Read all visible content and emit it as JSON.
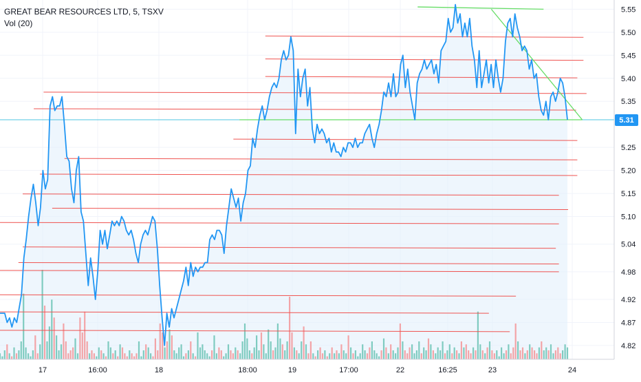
{
  "legend": {
    "symbol": "GREAT BEAR RESOURCES LTD, 5, TSXV",
    "volume": "Vol (20)"
  },
  "colors": {
    "price_line": "#2196f3",
    "price_fill": "#e3f0fb",
    "support_resistance": "#ef5350",
    "triangle": "#66dd66",
    "last_price_line": "#4dc4e0",
    "last_price_badge": "#2196f3",
    "vol_up": "#7fcbc0",
    "vol_down": "#f3a4a7",
    "axis": "#d0d3db"
  },
  "chart_data": {
    "type": "line",
    "symbol": "GREAT BEAR RESOURCES LTD, 5, TSXV",
    "x_ticks": [
      "17",
      "16:00",
      "18",
      "18:00",
      "19",
      "17:00",
      "22",
      "16:25",
      "23",
      "24"
    ],
    "y_ticks": [
      5.55,
      5.5,
      5.45,
      5.4,
      5.35,
      5.25,
      5.2,
      5.15,
      5.1,
      5.04,
      4.98,
      4.92,
      4.87,
      4.82
    ],
    "ylim": [
      4.79,
      5.57
    ],
    "last_price": 5.31,
    "last_price_label": "5.31",
    "grid": true,
    "price": [
      4.89,
      4.89,
      4.89,
      4.87,
      4.88,
      4.86,
      4.88,
      4.87,
      4.9,
      4.93,
      5.01,
      5.05,
      5.1,
      5.14,
      5.17,
      5.13,
      5.08,
      5.12,
      5.2,
      5.16,
      5.18,
      5.34,
      5.36,
      5.33,
      5.34,
      5.34,
      5.36,
      5.3,
      5.23,
      5.22,
      5.16,
      5.13,
      5.2,
      5.23,
      5.11,
      5.09,
      5.02,
      4.95,
      5.01,
      4.97,
      4.92,
      4.98,
      5.07,
      5.04,
      5.07,
      5.03,
      5.06,
      5.09,
      5.08,
      5.09,
      5.08,
      5.1,
      5.09,
      5.07,
      5.06,
      5.07,
      5.05,
      5.02,
      5.0,
      5.04,
      5.06,
      5.07,
      5.06,
      5.08,
      5.1,
      5.09,
      5.03,
      4.95,
      4.88,
      4.82,
      4.89,
      4.86,
      4.9,
      4.88,
      4.9,
      4.92,
      4.94,
      4.96,
      4.99,
      4.95,
      5.0,
      4.97,
      4.99,
      4.98,
      4.99,
      4.99,
      5.0,
      5.0,
      5.05,
      5.06,
      5.05,
      5.07,
      5.07,
      5.06,
      5.02,
      5.08,
      5.12,
      5.16,
      5.14,
      5.12,
      5.14,
      5.09,
      5.13,
      5.15,
      5.2,
      5.21,
      5.27,
      5.25,
      5.29,
      5.32,
      5.34,
      5.31,
      5.33,
      5.36,
      5.38,
      5.39,
      5.38,
      5.4,
      5.44,
      5.46,
      5.44,
      5.45,
      5.49,
      5.46,
      5.28,
      5.42,
      5.36,
      5.4,
      5.42,
      5.34,
      5.38,
      5.29,
      5.26,
      5.3,
      5.28,
      5.29,
      5.28,
      5.26,
      5.27,
      5.24,
      5.26,
      5.24,
      5.24,
      5.23,
      5.25,
      5.24,
      5.26,
      5.26,
      5.25,
      5.27,
      5.25,
      5.26,
      5.26,
      5.28,
      5.29,
      5.3,
      5.27,
      5.25,
      5.28,
      5.3,
      5.33,
      5.37,
      5.36,
      5.39,
      5.36,
      5.41,
      5.36,
      5.37,
      5.43,
      5.45,
      5.38,
      5.42,
      5.37,
      5.34,
      5.31,
      5.39,
      5.41,
      5.42,
      5.44,
      5.42,
      5.43,
      5.44,
      5.41,
      5.43,
      5.39,
      5.46,
      5.47,
      5.48,
      5.53,
      5.5,
      5.51,
      5.56,
      5.52,
      5.54,
      5.49,
      5.52,
      5.49,
      5.53,
      5.47,
      5.44,
      5.38,
      5.46,
      5.38,
      5.41,
      5.44,
      5.39,
      5.43,
      5.38,
      5.44,
      5.4,
      5.37,
      5.4,
      5.48,
      5.52,
      5.53,
      5.49,
      5.54,
      5.51,
      5.49,
      5.46,
      5.47,
      5.46,
      5.42,
      5.44,
      5.4,
      5.41,
      5.36,
      5.33,
      5.32,
      5.35,
      5.31,
      5.36,
      5.37,
      5.35,
      5.37,
      5.4,
      5.39,
      5.36,
      5.31
    ],
    "volume": [
      2,
      1,
      3,
      5,
      2,
      1,
      4,
      2,
      3,
      6,
      22,
      4,
      2,
      1,
      3,
      8,
      2,
      5,
      30,
      18,
      6,
      11,
      20,
      14,
      8,
      3,
      5,
      12,
      6,
      2,
      3,
      4,
      7,
      2,
      14,
      9,
      16,
      6,
      2,
      3,
      2,
      1,
      4,
      3,
      2,
      1,
      6,
      4,
      2,
      3,
      1,
      5,
      4,
      2,
      1,
      3,
      2,
      1,
      2,
      6,
      1,
      3,
      5,
      4,
      2,
      1,
      7,
      3,
      12,
      9,
      4,
      6,
      10,
      8,
      3,
      2,
      4,
      5,
      1,
      2,
      3,
      6,
      2,
      1,
      9,
      4,
      5,
      3,
      2,
      1,
      3,
      8,
      2,
      4,
      3,
      1,
      2,
      5,
      3,
      2,
      4,
      3,
      2,
      6,
      12,
      7,
      3,
      2,
      4,
      8,
      3,
      9,
      5,
      2,
      10,
      6,
      3,
      4,
      12,
      7,
      5,
      3,
      6,
      21,
      9,
      4,
      3,
      2,
      6,
      11,
      5,
      2,
      6,
      2,
      1,
      3,
      4,
      2,
      3,
      1,
      2,
      4,
      2,
      3,
      2,
      5,
      3,
      2,
      8,
      4,
      2,
      3,
      1,
      2,
      5,
      3,
      2,
      4,
      6,
      3,
      2,
      1,
      3,
      7,
      4,
      2,
      5,
      3,
      2,
      4,
      12,
      6,
      3,
      2,
      4,
      5,
      2,
      3,
      6,
      2,
      4,
      3,
      7,
      5,
      3,
      2,
      4,
      3,
      6,
      2,
      3,
      5,
      2,
      4,
      3,
      2,
      6,
      4,
      5,
      3,
      2,
      4,
      3,
      16,
      5,
      3,
      2,
      4,
      6,
      3,
      2,
      3,
      1,
      4,
      2,
      3,
      5,
      2,
      4,
      12,
      6,
      3,
      4,
      2,
      3,
      5,
      4,
      3,
      2,
      4,
      6,
      3,
      4,
      3,
      5,
      2,
      3,
      4,
      2,
      3,
      5,
      4
    ],
    "horizontal_lines": [
      {
        "x0": 0.071,
        "x1": 0.955,
        "y": 5.37
      },
      {
        "x0": 0.055,
        "x1": 0.938,
        "y": 5.334
      },
      {
        "x0": 0.105,
        "x1": 0.94,
        "y": 5.226
      },
      {
        "x0": 0.065,
        "x1": 0.94,
        "y": 5.192
      },
      {
        "x0": 0.037,
        "x1": 0.91,
        "y": 5.149
      },
      {
        "x0": 0.085,
        "x1": 0.925,
        "y": 5.118
      },
      {
        "x0": 0.0,
        "x1": 0.91,
        "y": 5.087
      },
      {
        "x0": 0.037,
        "x1": 0.905,
        "y": 5.034
      },
      {
        "x0": 0.03,
        "x1": 0.91,
        "y": 5.0
      },
      {
        "x0": 0.0,
        "x1": 0.91,
        "y": 4.983
      },
      {
        "x0": 0.0,
        "x1": 0.84,
        "y": 4.93
      },
      {
        "x0": 0.0,
        "x1": 0.796,
        "y": 4.893
      },
      {
        "x0": 0.0,
        "x1": 0.83,
        "y": 4.853
      },
      {
        "x0": 0.432,
        "x1": 0.95,
        "y": 5.492
      },
      {
        "x0": 0.432,
        "x1": 0.95,
        "y": 5.442
      },
      {
        "x0": 0.432,
        "x1": 0.94,
        "y": 5.404
      },
      {
        "x0": 0.38,
        "x1": 0.94,
        "y": 5.268
      }
    ],
    "triangle_lines": [
      {
        "x0": 0.68,
        "y0": 5.555,
        "x1": 0.885,
        "y1": 5.55
      },
      {
        "x0": 0.8,
        "y0": 5.55,
        "x1": 0.948,
        "y1": 5.31
      },
      {
        "x0": 0.39,
        "y0": 5.31,
        "x1": 0.948,
        "y1": 5.31
      }
    ]
  }
}
